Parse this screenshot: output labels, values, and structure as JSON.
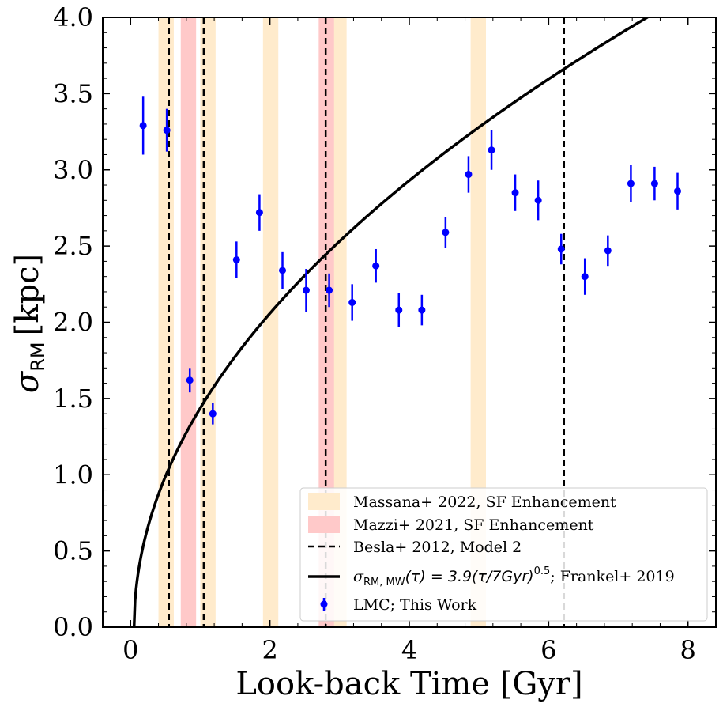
{
  "chart_data": {
    "type": "scatter",
    "xlabel": "Look-back Time [Gyr]",
    "ylabel_main": "σ",
    "ylabel_sub": "RM",
    "ylabel_unit": "[kpc]",
    "xlim": [
      -0.4,
      8.4
    ],
    "ylim": [
      0.0,
      4.0
    ],
    "xticks": [
      0,
      2,
      4,
      6,
      8
    ],
    "xtick_labels": [
      "0",
      "2",
      "4",
      "6",
      "8"
    ],
    "yticks": [
      0.0,
      0.5,
      1.0,
      1.5,
      2.0,
      2.5,
      3.0,
      3.5,
      4.0
    ],
    "ytick_labels": [
      "0.0",
      "0.5",
      "1.0",
      "1.5",
      "2.0",
      "2.5",
      "3.0",
      "3.5",
      "4.0"
    ],
    "colors": {
      "points": "#0000ff",
      "massana_band": "#ffebcc",
      "mazzi_band": "#ffc9c9",
      "lines": "#000000"
    },
    "massana_bands": [
      [
        0.4,
        0.62
      ],
      [
        1.0,
        1.22
      ],
      [
        1.9,
        2.12
      ],
      [
        2.88,
        3.1
      ],
      [
        4.88,
        5.1
      ]
    ],
    "mazzi_bands": [
      [
        0.72,
        0.94
      ],
      [
        2.7,
        2.92
      ]
    ],
    "besla_lines": [
      0.55,
      1.05,
      2.8,
      6.22
    ],
    "frankel_curve": {
      "amplitude": 3.9,
      "tau0": 7,
      "power": 0.5,
      "shift": 0.05
    },
    "lmc_points": {
      "x": [
        0.18,
        0.52,
        0.85,
        1.18,
        1.52,
        1.85,
        2.18,
        2.52,
        2.85,
        3.18,
        3.52,
        3.85,
        4.18,
        4.52,
        4.85,
        5.18,
        5.52,
        5.85,
        6.18,
        6.52,
        6.85,
        7.18,
        7.52,
        7.85
      ],
      "y": [
        3.29,
        3.26,
        1.62,
        1.4,
        2.41,
        2.72,
        2.34,
        2.21,
        2.21,
        2.13,
        2.37,
        2.08,
        2.08,
        2.59,
        2.97,
        3.13,
        2.85,
        2.8,
        2.48,
        2.3,
        2.47,
        2.91,
        2.91,
        2.86
      ],
      "err": [
        0.19,
        0.14,
        0.08,
        0.07,
        0.12,
        0.12,
        0.12,
        0.14,
        0.11,
        0.12,
        0.11,
        0.11,
        0.1,
        0.1,
        0.12,
        0.13,
        0.12,
        0.13,
        0.1,
        0.12,
        0.1,
        0.12,
        0.11,
        0.12
      ]
    },
    "legend": {
      "location": "lower-right",
      "massana": "Massana+ 2022, SF Enhancement",
      "mazzi": "Mazzi+ 2021, SF Enhancement",
      "besla": "Besla+ 2012, Model 2",
      "frankel_math_sigma": "σ",
      "frankel_math_sub": "RM, MW",
      "frankel_math_body": "(τ) = 3.9(τ/7Gyr)",
      "frankel_math_exp": "0.5",
      "frankel_suffix": "; Frankel+ 2019",
      "lmc": "LMC; This Work"
    }
  }
}
